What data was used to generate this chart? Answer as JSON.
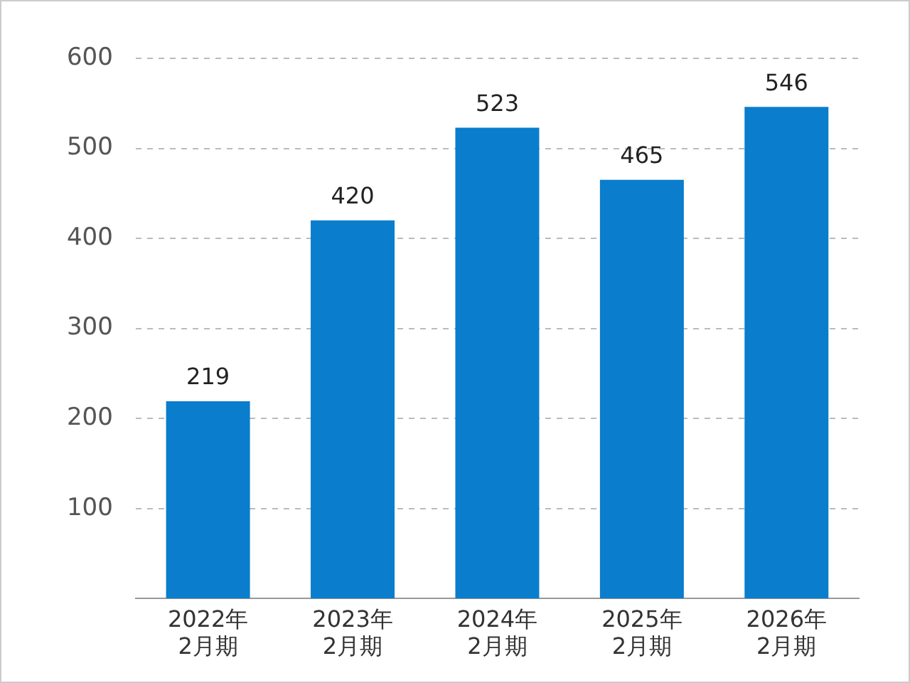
{
  "chart_data": {
    "type": "bar",
    "categories": [
      "2022年\n2月期",
      "2023年\n2月期",
      "2024年\n2月期",
      "2025年\n2月期",
      "2026年\n2月期"
    ],
    "values": [
      219,
      420,
      523,
      465,
      546
    ],
    "color": "#0a7dcd",
    "ylim": [
      0,
      600
    ],
    "yticks": [
      100,
      200,
      300,
      400,
      500,
      600
    ],
    "grid": "y",
    "data_labels": true,
    "legend": false
  }
}
